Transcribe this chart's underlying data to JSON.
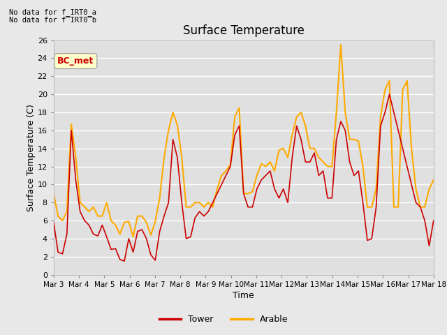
{
  "title": "Surface Temperature",
  "xlabel": "Time",
  "ylabel": "Surface Temperature (C)",
  "ylim": [
    0,
    26
  ],
  "yticks": [
    0,
    2,
    4,
    6,
    8,
    10,
    12,
    14,
    16,
    18,
    20,
    22,
    24,
    26
  ],
  "x_tick_labels": [
    "Mar 3",
    "Mar 4",
    "Mar 5",
    "Mar 6",
    "Mar 7",
    "Mar 8",
    "Mar 9",
    "Mar 10",
    "Mar 11",
    "Mar 12",
    "Mar 13",
    "Mar 14",
    "Mar 15",
    "Mar 16",
    "Mar 17",
    "Mar 18"
  ],
  "annotation_line1": "No data for f_IRT0_a",
  "annotation_line2": "No data for f̅IRT0̅b",
  "bc_met_label": "BC_met",
  "tower_color": "#cc0000",
  "arable_color": "#ffaa00",
  "legend_labels": [
    "Tower",
    "Arable"
  ],
  "bg_color": "#e0e0e0",
  "grid_color": "#ffffff",
  "fig_bg_color": "#e8e8e8",
  "tower_data": [
    5.8,
    2.5,
    2.3,
    4.5,
    16.0,
    10.5,
    7.0,
    6.0,
    5.5,
    4.5,
    4.3,
    5.5,
    4.2,
    2.8,
    2.9,
    1.7,
    1.5,
    4.0,
    2.5,
    4.8,
    5.0,
    4.0,
    2.2,
    1.6,
    4.8,
    6.5,
    8.0,
    15.0,
    13.0,
    8.0,
    4.0,
    4.2,
    6.3,
    7.0,
    6.5,
    7.0,
    8.0,
    9.0,
    10.0,
    11.0,
    12.0,
    15.5,
    16.5,
    9.0,
    7.5,
    7.5,
    9.5,
    10.5,
    11.0,
    11.5,
    9.5,
    8.5,
    9.5,
    8.0,
    13.0,
    16.5,
    15.0,
    12.5,
    12.5,
    13.5,
    11.0,
    11.5,
    8.5,
    8.5,
    15.0,
    17.0,
    16.0,
    12.5,
    11.0,
    11.5,
    8.0,
    3.8,
    4.0,
    7.5,
    16.5,
    18.0,
    20.0,
    18.0,
    16.0,
    14.0,
    12.0,
    10.0,
    8.0,
    7.5,
    6.0,
    3.2,
    6.0
  ],
  "arable_data": [
    9.0,
    6.5,
    6.0,
    7.0,
    16.7,
    13.0,
    8.0,
    7.5,
    7.0,
    7.5,
    6.5,
    6.5,
    8.0,
    6.0,
    5.5,
    4.5,
    5.8,
    5.9,
    4.2,
    6.5,
    6.5,
    5.8,
    4.4,
    5.9,
    8.5,
    13.0,
    16.0,
    18.0,
    16.6,
    13.0,
    7.5,
    7.5,
    8.0,
    8.0,
    7.5,
    8.0,
    7.5,
    9.5,
    11.0,
    11.5,
    12.2,
    17.5,
    18.5,
    9.0,
    9.0,
    9.2,
    11.0,
    12.3,
    12.0,
    12.5,
    11.5,
    13.8,
    14.0,
    13.0,
    15.5,
    17.5,
    18.0,
    16.5,
    14.0,
    14.0,
    13.0,
    12.5,
    12.0,
    12.0,
    18.0,
    25.5,
    18.0,
    15.0,
    15.0,
    14.8,
    12.0,
    7.5,
    7.5,
    9.5,
    17.5,
    20.5,
    21.5,
    7.5,
    7.5,
    20.5,
    21.5,
    14.0,
    9.5,
    7.5,
    7.5,
    9.5,
    10.5
  ]
}
